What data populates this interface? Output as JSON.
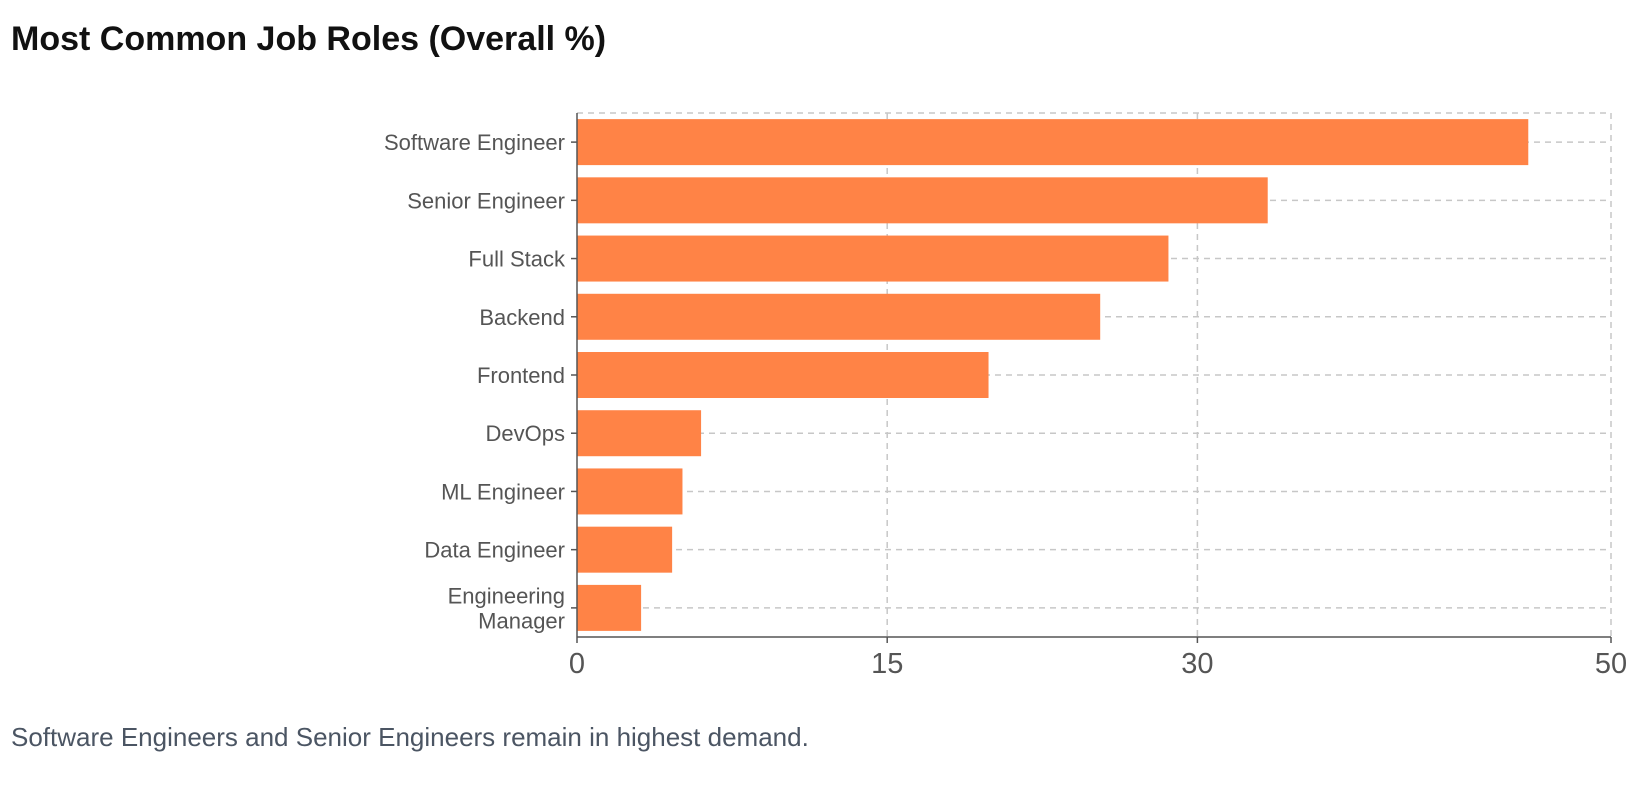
{
  "title": "Most Common Job Roles (Overall %)",
  "caption": "Software Engineers and Senior Engineers remain in highest demand.",
  "colors": {
    "bar": "#ff8346",
    "axis": "#555555",
    "grid": "#c7c7c7",
    "tick_text": "#555555",
    "label_text": "#555555"
  },
  "chart_data": {
    "type": "bar",
    "orientation": "horizontal",
    "title": "Most Common Job Roles (Overall %)",
    "categories": [
      "Software Engineer",
      "Senior Engineer",
      "Full Stack",
      "Backend",
      "Frontend",
      "DevOps",
      "ML Engineer",
      "Data Engineer",
      "Engineering Manager"
    ],
    "category_lines": [
      [
        "Software Engineer"
      ],
      [
        "Senior Engineer"
      ],
      [
        "Full Stack"
      ],
      [
        "Backend"
      ],
      [
        "Frontend"
      ],
      [
        "DevOps"
      ],
      [
        "ML Engineer"
      ],
      [
        "Data Engineer"
      ],
      [
        "Engineering",
        "Manager"
      ]
    ],
    "values": [
      46,
      33.4,
      28.6,
      25.3,
      19.9,
      6,
      5.1,
      4.6,
      3.1
    ],
    "xlim": [
      0,
      50
    ],
    "xticks": [
      0,
      15,
      30,
      50
    ],
    "xtick_labels": [
      "0",
      "15",
      "30",
      "50"
    ],
    "xlabel": "",
    "ylabel": "",
    "grid": true,
    "legend": "none"
  }
}
